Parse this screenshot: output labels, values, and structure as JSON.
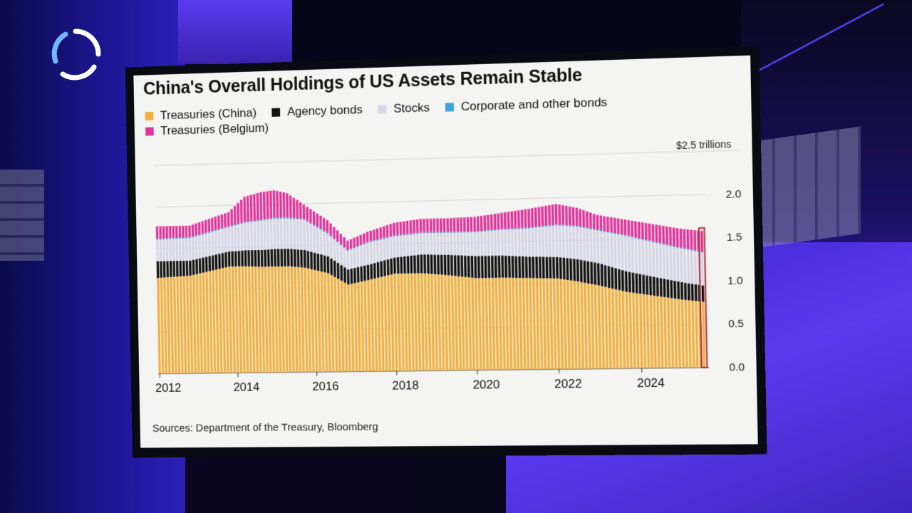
{
  "chart_data": {
    "type": "bar",
    "stacked": true,
    "title": "China's Overall Holdings of US Assets Remain Stable",
    "unit_label": "$2.5 trillions",
    "source": "Sources: Department of the Treasury, Bloomberg",
    "ylim": [
      0,
      2.5
    ],
    "y_ticks": [
      "2.0",
      "1.5",
      "1.0",
      "0.5",
      "0.0"
    ],
    "x_ticks": [
      "2012",
      "2014",
      "2016",
      "2018",
      "2020",
      "2022",
      "2024"
    ],
    "x_tick_months": [
      0,
      24,
      48,
      72,
      96,
      120,
      144
    ],
    "x_start": "2011-12",
    "highlight": "last bar",
    "keyframes_month": [
      0,
      10,
      22,
      27,
      32,
      36,
      40,
      45,
      52,
      58,
      64,
      72,
      80,
      88,
      96,
      104,
      112,
      120,
      126,
      132,
      140,
      148,
      156,
      162
    ],
    "series": [
      {
        "name": "Treasuries (China)",
        "color": "#f0b040",
        "values": [
          1.15,
          1.17,
          1.27,
          1.27,
          1.26,
          1.26,
          1.26,
          1.24,
          1.17,
          1.03,
          1.08,
          1.15,
          1.15,
          1.12,
          1.08,
          1.08,
          1.07,
          1.06,
          1.02,
          0.97,
          0.89,
          0.84,
          0.79,
          0.76
        ]
      },
      {
        "name": "Agency bonds",
        "color": "#111111",
        "values": [
          0.2,
          0.18,
          0.18,
          0.19,
          0.2,
          0.21,
          0.21,
          0.21,
          0.2,
          0.18,
          0.18,
          0.19,
          0.22,
          0.24,
          0.26,
          0.26,
          0.25,
          0.25,
          0.26,
          0.26,
          0.24,
          0.22,
          0.2,
          0.19
        ]
      },
      {
        "name": "Stocks",
        "color": "#d6d6e6",
        "values": [
          0.26,
          0.27,
          0.29,
          0.33,
          0.35,
          0.36,
          0.36,
          0.36,
          0.27,
          0.22,
          0.26,
          0.25,
          0.25,
          0.26,
          0.28,
          0.3,
          0.33,
          0.37,
          0.38,
          0.38,
          0.41,
          0.4,
          0.39,
          0.38
        ]
      },
      {
        "name": "Corporate and other bonds",
        "color": "#3fa3de",
        "values": [
          0.01,
          0.01,
          0.01,
          0.01,
          0.01,
          0.01,
          0.01,
          0.01,
          0.01,
          0.01,
          0.01,
          0.01,
          0.01,
          0.01,
          0.01,
          0.01,
          0.01,
          0.01,
          0.01,
          0.01,
          0.01,
          0.01,
          0.01,
          0.01
        ]
      },
      {
        "name": "Treasuries (Belgium)",
        "color": "#e0329a",
        "values": [
          0.15,
          0.14,
          0.17,
          0.3,
          0.33,
          0.33,
          0.29,
          0.17,
          0.15,
          0.11,
          0.12,
          0.15,
          0.16,
          0.16,
          0.17,
          0.19,
          0.22,
          0.24,
          0.21,
          0.17,
          0.18,
          0.2,
          0.22,
          0.24
        ]
      }
    ],
    "legend": [
      [
        "Treasuries (China)",
        "Agency bonds",
        "Stocks",
        "Corporate and other bonds"
      ],
      [
        "Treasuries (Belgium)"
      ]
    ]
  }
}
